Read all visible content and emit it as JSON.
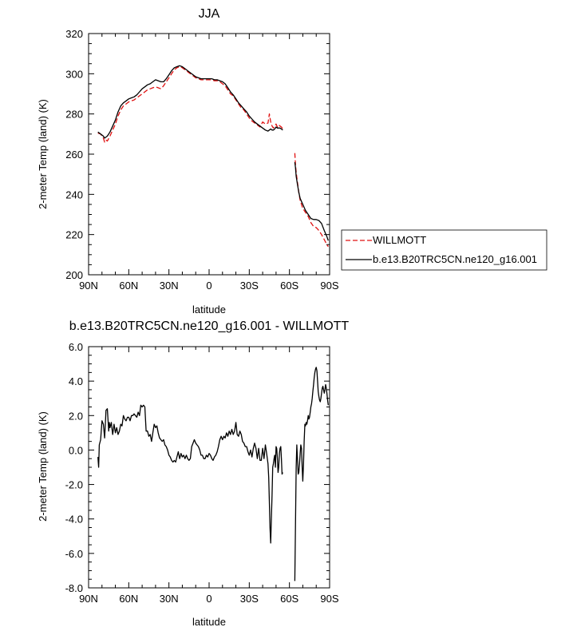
{
  "chart_data": [
    {
      "type": "line",
      "title": "JJA",
      "xlabel": "latitude",
      "ylabel": "2-meter Temp (land) (K)",
      "x_tick_labels": [
        "90N",
        "60N",
        "30N",
        "0",
        "30S",
        "60S",
        "90S"
      ],
      "x_tick_values": [
        90,
        60,
        30,
        0,
        -30,
        -60,
        -90
      ],
      "xlim": [
        90,
        -90
      ],
      "ylim": [
        200,
        320
      ],
      "y_tick_labels": [
        "200",
        "220",
        "240",
        "260",
        "280",
        "300",
        "320"
      ],
      "y_tick_values": [
        200,
        220,
        240,
        260,
        280,
        300,
        320
      ],
      "legend_position": "outside-right",
      "series": [
        {
          "name": "WILLMOTT",
          "color": "#e01010",
          "dash": "dashed",
          "segments": [
            {
              "x": [
                83,
                81,
                79,
                78,
                77,
                76,
                74,
                72,
                70,
                68,
                66,
                64,
                62,
                60,
                58,
                56,
                54,
                52,
                50,
                48,
                46,
                44,
                42,
                40,
                38,
                36,
                34,
                32,
                30,
                28,
                26,
                24,
                22,
                20,
                18,
                16,
                14,
                12,
                10,
                8,
                6,
                4,
                2,
                0,
                -2,
                -4,
                -6,
                -8,
                -10,
                -12,
                -14,
                -16,
                -18,
                -20,
                -22,
                -24,
                -26,
                -28,
                -30,
                -32,
                -34,
                -36,
                -38,
                -40,
                -42,
                -44,
                -45,
                -46,
                -47,
                -48,
                -49,
                -50,
                -51,
                -52,
                -53,
                -54,
                -55
              ],
              "y": [
                270.5,
                270,
                268,
                266,
                267,
                266.5,
                269,
                272,
                275,
                279,
                282,
                284,
                285,
                286,
                286.5,
                287,
                288,
                289,
                290,
                291,
                292,
                292.5,
                293,
                293.5,
                293,
                292.5,
                294,
                296,
                298,
                300,
                302,
                303,
                303.5,
                303,
                302,
                301,
                300,
                299,
                298,
                297.5,
                297,
                297,
                297,
                297,
                297,
                296.5,
                296.5,
                296,
                295,
                294,
                292,
                290,
                289,
                287,
                285,
                283,
                282,
                280,
                278,
                276.5,
                275.5,
                274.5,
                273.5,
                276,
                275,
                275.5,
                280,
                276,
                274,
                273,
                274,
                275,
                273.5,
                274.5,
                274,
                273.5,
                272.5
              ]
            },
            {
              "x": [
                -64,
                -64.5,
                -65,
                -66,
                -67,
                -68,
                -70,
                -72,
                -74,
                -76,
                -78,
                -80,
                -82,
                -84,
                -86,
                -88,
                -89
              ],
              "y": [
                260.5,
                255,
                251,
                246,
                241,
                237,
                233,
                231,
                229,
                226,
                224,
                223.5,
                222,
                220,
                217.5,
                215,
                214
              ]
            }
          ]
        },
        {
          "name": "b.e13.B20TRC5CN.ne120_g16.001",
          "color": "#000000",
          "dash": "solid",
          "segments": [
            {
              "x": [
                83,
                81,
                79,
                78,
                77,
                76,
                74,
                72,
                70,
                68,
                66,
                64,
                62,
                60,
                58,
                56,
                54,
                52,
                50,
                48,
                46,
                44,
                42,
                40,
                38,
                36,
                34,
                32,
                30,
                28,
                26,
                24,
                22,
                20,
                18,
                16,
                14,
                12,
                10,
                8,
                6,
                4,
                2,
                0,
                -2,
                -4,
                -6,
                -8,
                -10,
                -12,
                -14,
                -16,
                -18,
                -20,
                -22,
                -24,
                -26,
                -28,
                -30,
                -32,
                -34,
                -36,
                -38,
                -40,
                -42,
                -44,
                -45,
                -46,
                -47,
                -48,
                -49,
                -50,
                -51,
                -52,
                -53,
                -54,
                -55
              ],
              "y": [
                271,
                270,
                269,
                268,
                268.5,
                269,
                271,
                274,
                277,
                281,
                284,
                285.5,
                286.5,
                287.5,
                288,
                288.5,
                289.5,
                291,
                292.5,
                293.5,
                294.5,
                295,
                296,
                297,
                296.5,
                296,
                296,
                297.5,
                299.5,
                301.5,
                303,
                303.5,
                304,
                303.5,
                302.5,
                301.5,
                300.5,
                299.5,
                298.5,
                298,
                297.5,
                297.5,
                297.5,
                297.5,
                297.5,
                297,
                297,
                296.5,
                296,
                295,
                293,
                291,
                289.5,
                287.5,
                285.5,
                284,
                282.5,
                281,
                279,
                277.5,
                276,
                275,
                274,
                273,
                272,
                271.5,
                272,
                272.5,
                272,
                272,
                272.5,
                273.5,
                273,
                273,
                273,
                272.5,
                272
              ]
            },
            {
              "x": [
                -64,
                -64.5,
                -65,
                -66,
                -67,
                -68,
                -70,
                -72,
                -74,
                -76,
                -78,
                -80,
                -82,
                -84,
                -86,
                -88,
                -89
              ],
              "y": [
                256,
                253.5,
                249,
                245,
                241,
                238,
                235,
                232,
                230,
                228,
                227.5,
                227.5,
                227,
                225.5,
                222,
                219,
                217
              ]
            }
          ]
        }
      ]
    },
    {
      "type": "line",
      "title": "b.e13.B20TRC5CN.ne120_g16.001 - WILLMOTT",
      "xlabel": "latitude",
      "ylabel": "2-meter Temp (land) (K)",
      "x_tick_labels": [
        "90N",
        "60N",
        "30N",
        "0",
        "30S",
        "60S",
        "90S"
      ],
      "x_tick_values": [
        90,
        60,
        30,
        0,
        -30,
        -60,
        -90
      ],
      "xlim": [
        90,
        -90
      ],
      "ylim": [
        -8,
        6
      ],
      "y_tick_labels": [
        "-8.0",
        "-6.0",
        "-4.0",
        "-2.0",
        "0.0",
        "2.0",
        "4.0",
        "6.0"
      ],
      "y_tick_values": [
        -8,
        -6,
        -4,
        -2,
        0,
        2,
        4,
        6
      ],
      "series": [
        {
          "color": "#000000",
          "dash": "solid",
          "segments": [
            {
              "x": [
                83,
                82.5,
                82,
                81,
                80,
                79,
                78,
                77.5,
                77,
                76,
                75,
                74.5,
                74,
                73,
                72.5,
                72,
                71,
                70,
                69,
                68,
                67,
                66,
                65,
                64,
                63,
                62,
                61,
                60,
                59,
                58,
                57,
                56,
                55,
                54,
                53,
                52,
                51,
                50,
                49,
                48,
                47,
                46,
                45,
                44,
                43,
                42,
                41,
                40,
                39,
                38,
                37,
                36,
                35,
                34,
                33,
                32,
                31,
                30,
                29,
                28,
                27,
                26,
                25,
                24,
                23,
                22,
                21,
                20,
                19,
                18,
                17,
                16,
                15,
                14,
                13,
                12,
                11,
                10,
                9,
                8,
                7,
                6,
                5,
                4,
                3,
                2,
                1,
                0,
                -1,
                -2,
                -3,
                -4,
                -5,
                -6,
                -7,
                -8,
                -9,
                -10,
                -11,
                -12,
                -13,
                -14,
                -15,
                -16,
                -17,
                -18,
                -19,
                -20,
                -21,
                -22,
                -23,
                -24,
                -25,
                -26,
                -27,
                -28,
                -29,
                -30,
                -31,
                -32,
                -33,
                -34,
                -35,
                -36,
                -37,
                -38,
                -39,
                -40,
                -41,
                -42,
                -43,
                -44,
                -44.5,
                -45,
                -45.5,
                -46,
                -46.5,
                -47,
                -47.5,
                -48,
                -48.5,
                -49,
                -49.5,
                -50,
                -50.5,
                -51,
                -51.5,
                -52,
                -52.5,
                -53,
                -53.5,
                -54,
                -54.5,
                -55
              ],
              "y": [
                -0.4,
                -1.0,
                0.3,
                0.6,
                1.7,
                1.5,
                0.7,
                1.5,
                2.3,
                2.4,
                1.1,
                1.6,
                1.3,
                1.6,
                1.2,
                0.9,
                1.5,
                1.0,
                1.3,
                0.9,
                1.1,
                1.5,
                1.4,
                2.0,
                1.8,
                1.7,
                1.9,
                1.9,
                1.7,
                2.0,
                2.0,
                2.1,
                2.0,
                1.9,
                2.2,
                2.0,
                2.6,
                2.5,
                2.6,
                2.5,
                1.1,
                1.1,
                0.8,
                0.9,
                0.5,
                1.0,
                1.5,
                1.3,
                1.4,
                1.0,
                0.7,
                0.6,
                0.5,
                0.6,
                0.3,
                0.2,
                0.0,
                -0.3,
                -0.4,
                -0.6,
                -0.7,
                -0.6,
                -0.7,
                -0.4,
                -0.1,
                -0.5,
                -0.2,
                -0.4,
                -0.3,
                -0.5,
                -0.3,
                -0.5,
                -0.6,
                -0.5,
                0.2,
                0.4,
                0.6,
                0.4,
                0.3,
                0.2,
                0.0,
                -0.3,
                -0.3,
                -0.5,
                -0.5,
                -0.3,
                -0.4,
                -0.2,
                -0.3,
                -0.5,
                -0.6,
                -0.4,
                -0.3,
                -0.1,
                0.2,
                0.6,
                0.8,
                0.6,
                0.8,
                0.7,
                1.0,
                0.8,
                1.1,
                0.9,
                1.2,
                0.9,
                1.1,
                1.6,
                0.9,
                0.8,
                1.1,
                0.9,
                0.5,
                0.4,
                0.2,
                0.2,
                -0.1,
                -0.3,
                0.0,
                -0.4,
                0.1,
                0.4,
                0.1,
                -0.5,
                0.1,
                -0.6,
                -0.6,
                0.1,
                -0.5,
                0.3,
                -0.2,
                -0.8,
                -1.6,
                -3.0,
                -4.5,
                -5.4,
                -4.0,
                -2.6,
                -1.0,
                -0.8,
                -0.5,
                -0.3,
                -1.0,
                0.2,
                0.1,
                -0.5,
                -1.3,
                -1.0,
                -0.2,
                0.1,
                0.2,
                -0.5,
                -1.4,
                -1.3
              ]
            },
            {
              "x": [
                -64,
                -64.5,
                -65,
                -65.5,
                -66,
                -66.5,
                -67,
                -67.5,
                -68,
                -68.5,
                -69,
                -69.5,
                -70,
                -70.5,
                -71,
                -71.5,
                -72,
                -72.5,
                -73,
                -73.5,
                -74,
                -74.5,
                -75,
                -75.5,
                -76,
                -76.5,
                -77,
                -77.5,
                -78,
                -78.5,
                -79,
                -79.5,
                -80,
                -80.5,
                -81,
                -81.5,
                -82,
                -82.5,
                -83,
                -83.5,
                -84,
                -84.5,
                -85,
                -85.5,
                -86,
                -86.5,
                -87,
                -87.5,
                -88,
                -88.5,
                -89
              ],
              "y": [
                -7.6,
                -4.5,
                -1.0,
                0.3,
                -0.5,
                -1.4,
                -1.3,
                -0.8,
                -0.2,
                0.3,
                0.1,
                -1.0,
                -1.8,
                -0.8,
                0.5,
                1.5,
                1.4,
                1.6,
                1.5,
                1.7,
                2.0,
                1.8,
                1.9,
                2.2,
                2.5,
                2.7,
                3.0,
                3.4,
                3.8,
                4.2,
                4.5,
                4.7,
                4.8,
                4.6,
                4.0,
                3.4,
                3.1,
                2.9,
                2.8,
                3.0,
                3.3,
                3.6,
                3.7,
                3.5,
                3.3,
                3.5,
                3.8,
                3.6,
                3.3,
                2.9,
                2.6
              ]
            }
          ]
        }
      ]
    }
  ]
}
